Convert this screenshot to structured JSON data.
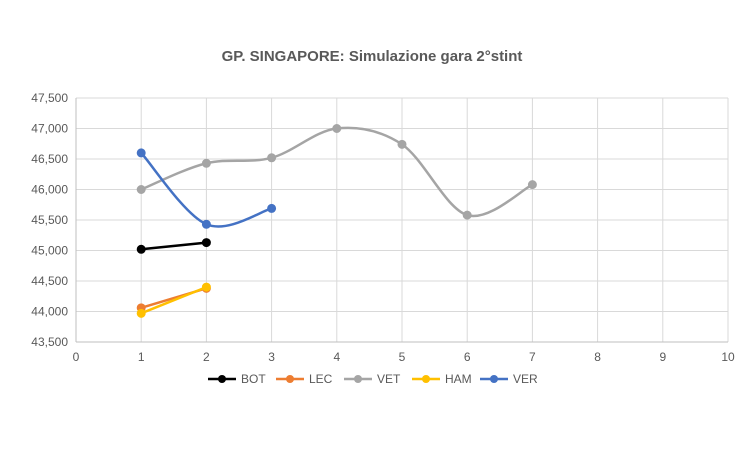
{
  "chart_data": {
    "type": "scatter",
    "title": "GP. SINGAPORE: Simulazione gara 2°stint",
    "xlabel": "",
    "ylabel": "",
    "xlim": [
      0,
      10
    ],
    "ylim": [
      43.5,
      47.5
    ],
    "x_ticks": [
      "0",
      "1",
      "2",
      "3",
      "4",
      "5",
      "6",
      "7",
      "8",
      "9",
      "10"
    ],
    "y_ticks": [
      "43,500",
      "44,000",
      "44,500",
      "45,000",
      "45,500",
      "46,000",
      "46,500",
      "47,000",
      "47,500"
    ],
    "grid": true,
    "legend_position": "bottom",
    "series": [
      {
        "name": "BOT",
        "color": "#000000",
        "smooth": false,
        "x": [
          1,
          2
        ],
        "y": [
          45.02,
          45.13
        ]
      },
      {
        "name": "LEC",
        "color": "#ED7D31",
        "smooth": false,
        "x": [
          1,
          2
        ],
        "y": [
          44.06,
          44.38
        ]
      },
      {
        "name": "VET",
        "color": "#A5A5A5",
        "smooth": true,
        "x": [
          1,
          2,
          3,
          4,
          5,
          6,
          7
        ],
        "y": [
          46.0,
          46.43,
          46.52,
          47.0,
          46.74,
          45.58,
          46.08
        ]
      },
      {
        "name": "HAM",
        "color": "#FFC000",
        "smooth": false,
        "x": [
          1,
          2
        ],
        "y": [
          43.97,
          44.4
        ]
      },
      {
        "name": "VER",
        "color": "#4472C4",
        "smooth": true,
        "x": [
          1,
          2,
          3
        ],
        "y": [
          46.6,
          45.43,
          45.69
        ]
      }
    ]
  }
}
